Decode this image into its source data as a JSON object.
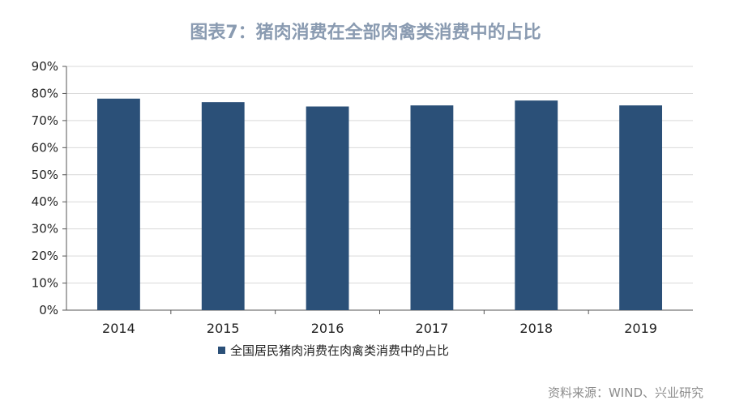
{
  "chart_data": {
    "type": "bar",
    "title": "图表7：猪肉消费在全部肉禽类消费中的占比",
    "categories": [
      "2014",
      "2015",
      "2016",
      "2017",
      "2018",
      "2019"
    ],
    "series": [
      {
        "name": "全国居民猪肉消费在肉禽类消费中的占比",
        "values": [
          78.1,
          76.8,
          75.2,
          75.6,
          77.4,
          75.6
        ]
      }
    ],
    "ylim": [
      0,
      90
    ],
    "yticks": [
      "0%",
      "10%",
      "20%",
      "30%",
      "40%",
      "50%",
      "60%",
      "70%",
      "80%",
      "90%"
    ],
    "xlabel": "",
    "ylabel": "",
    "grid": true,
    "legend_position": "bottom-left",
    "colors": {
      "bar": "#2b5078",
      "grid": "#d9d9d9",
      "axis": "#555555",
      "title": "#8a9bb1"
    }
  },
  "source": "资料来源：WIND、兴业研究"
}
